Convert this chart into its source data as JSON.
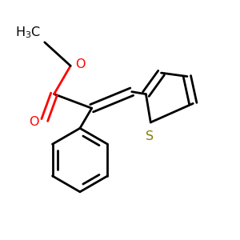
{
  "bg_color": "#ffffff",
  "bond_color": "#000000",
  "oxygen_color": "#ff0000",
  "sulfur_color": "#808000",
  "line_width": 2.0,
  "figsize": [
    3.0,
    3.0
  ],
  "dpi": 100,
  "xlim": [
    0,
    10
  ],
  "ylim": [
    0,
    10
  ]
}
